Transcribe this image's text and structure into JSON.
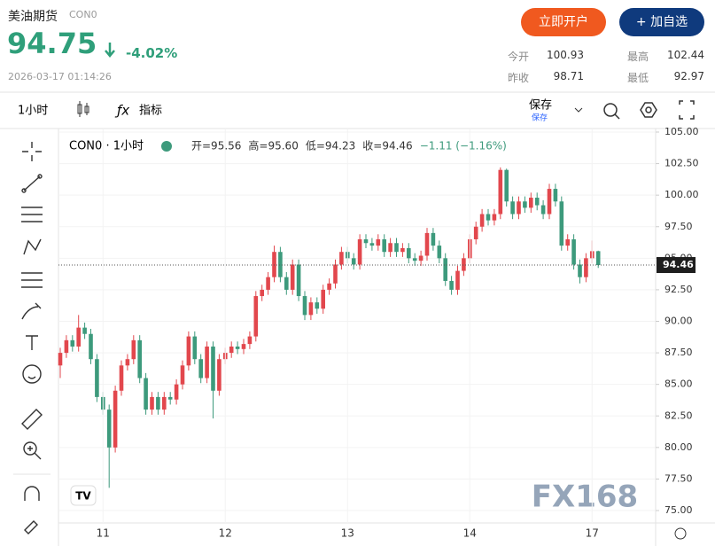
{
  "header": {
    "title": "美油期货",
    "code": "CON0",
    "price": "94.75",
    "change": "-4.02%",
    "time": "2026-03-17 01:14:26",
    "buttons": [
      "立即开户",
      "+ 加自选"
    ],
    "stats": [
      [
        "今开",
        "100.93"
      ],
      [
        "最高",
        "102.44"
      ],
      [
        "昨收",
        "98.71"
      ],
      [
        "最低",
        "92.97"
      ]
    ]
  },
  "toolbar": {
    "interval": "1小时",
    "indicators": "指标",
    "save": "保存",
    "save_sub": "保存"
  },
  "watermark": "FX168",
  "chart_data": {
    "type": "candlestick",
    "legend": {
      "symbol": "CON0 · 1小时",
      "items": [
        "开=95.56",
        "高=95.60",
        "低=94.23",
        "收=94.46",
        "−1.11 (−1.16%)"
      ]
    },
    "up_color": "#e2474d",
    "down_color": "#3d9a7c",
    "categories": [
      null,
      null,
      null,
      null,
      null,
      null,
      null,
      "11",
      null,
      null,
      null,
      null,
      null,
      null,
      null,
      null,
      null,
      null,
      null,
      null,
      null,
      null,
      null,
      null,
      null,
      null,
      null,
      "12",
      null,
      null,
      null,
      null,
      null,
      null,
      null,
      null,
      null,
      null,
      null,
      null,
      null,
      null,
      null,
      null,
      null,
      null,
      null,
      "13",
      null,
      null,
      null,
      null,
      null,
      null,
      null,
      null,
      null,
      null,
      null,
      null,
      null,
      null,
      null,
      null,
      null,
      null,
      null,
      "14",
      null,
      null,
      null,
      null,
      null,
      null,
      null,
      null,
      null,
      null,
      null,
      null,
      null,
      null,
      null,
      null,
      null,
      null,
      null,
      "17",
      null
    ],
    "open": [
      86.5,
      87.5,
      88.5,
      88.0,
      89.5,
      89.0,
      87.0,
      84.0,
      83.0,
      80.0,
      84.5,
      86.5,
      87.0,
      88.5,
      85.5,
      83.0,
      84.0,
      83.0,
      84.0,
      83.8,
      85.0,
      86.5,
      88.8,
      87.0,
      85.5,
      88.0,
      84.5,
      87.0,
      87.5,
      88.0,
      87.8,
      88.2,
      88.8,
      92.0,
      92.5,
      93.5,
      95.5,
      93.5,
      92.5,
      94.5,
      92.0,
      90.5,
      91.5,
      91.0,
      92.5,
      93.0,
      94.5,
      95.5,
      95.0,
      94.5,
      96.5,
      96.2,
      96.0,
      96.5,
      95.5,
      96.2,
      95.5,
      95.8,
      95.0,
      94.8,
      95.2,
      97.0,
      96.0,
      95.0,
      93.2,
      92.5,
      94.0,
      95.0,
      96.5,
      97.5,
      98.5,
      98.0,
      98.5,
      102.0,
      99.5,
      98.5,
      99.5,
      99.0,
      99.8,
      99.2,
      98.5,
      100.5,
      99.5,
      96.0,
      96.5,
      94.5,
      93.5,
      95.0,
      95.56
    ],
    "high": [
      87.9,
      88.9,
      88.9,
      90.5,
      89.9,
      89.4,
      87.4,
      84.4,
      83.4,
      84.9,
      86.9,
      87.4,
      88.9,
      88.9,
      85.9,
      84.4,
      84.4,
      84.4,
      84.4,
      85.4,
      86.9,
      89.2,
      89.2,
      87.4,
      88.4,
      88.4,
      87.4,
      87.9,
      88.4,
      88.4,
      88.6,
      89.2,
      92.4,
      92.9,
      93.9,
      96.0,
      95.9,
      93.9,
      94.9,
      94.9,
      92.4,
      91.9,
      91.9,
      92.9,
      93.4,
      94.9,
      95.9,
      95.9,
      95.4,
      96.9,
      96.9,
      96.6,
      96.9,
      96.9,
      96.6,
      96.6,
      96.2,
      96.2,
      95.4,
      95.6,
      97.4,
      97.4,
      96.4,
      95.4,
      93.6,
      94.4,
      95.4,
      96.9,
      97.9,
      98.9,
      98.9,
      98.9,
      102.2,
      102.1,
      99.9,
      99.9,
      99.9,
      100.2,
      100.2,
      99.6,
      100.9,
      100.9,
      99.9,
      96.9,
      96.9,
      94.9,
      95.4,
      96.4,
      95.6
    ],
    "low": [
      85.5,
      87.1,
      87.6,
      87.6,
      88.6,
      86.6,
      83.6,
      82.6,
      76.8,
      79.6,
      84.1,
      86.1,
      86.6,
      85.1,
      82.6,
      82.6,
      82.6,
      82.6,
      83.4,
      83.4,
      84.6,
      86.1,
      86.6,
      85.1,
      85.1,
      82.3,
      84.1,
      86.6,
      87.1,
      87.4,
      87.4,
      87.8,
      88.4,
      91.6,
      92.1,
      93.1,
      93.1,
      92.1,
      92.1,
      91.6,
      90.1,
      90.1,
      90.6,
      90.6,
      92.1,
      92.6,
      94.1,
      94.6,
      94.1,
      94.1,
      95.8,
      95.6,
      95.6,
      95.1,
      95.1,
      95.1,
      95.1,
      94.6,
      94.4,
      94.4,
      94.8,
      95.6,
      94.6,
      92.8,
      92.1,
      92.1,
      93.6,
      94.6,
      96.1,
      97.1,
      97.6,
      97.6,
      98.1,
      99.1,
      98.1,
      98.1,
      98.6,
      98.6,
      98.8,
      98.1,
      98.1,
      99.1,
      95.6,
      95.6,
      94.1,
      93.0,
      93.1,
      94.6,
      94.23
    ],
    "close": [
      87.5,
      88.5,
      88.0,
      89.5,
      89.0,
      87.0,
      84.0,
      83.0,
      80.0,
      84.5,
      86.5,
      87.0,
      88.5,
      85.5,
      83.0,
      84.0,
      83.0,
      84.0,
      83.8,
      85.0,
      86.5,
      88.8,
      87.0,
      85.5,
      88.0,
      84.5,
      87.0,
      87.5,
      88.0,
      87.8,
      88.2,
      88.8,
      92.0,
      92.5,
      93.5,
      95.5,
      93.5,
      92.5,
      94.5,
      92.0,
      90.5,
      91.5,
      91.0,
      92.5,
      93.0,
      94.5,
      95.5,
      95.0,
      94.5,
      96.5,
      96.2,
      96.0,
      96.5,
      95.5,
      96.2,
      95.5,
      95.8,
      95.0,
      94.8,
      95.2,
      97.0,
      96.0,
      95.0,
      93.2,
      92.5,
      94.0,
      95.0,
      96.5,
      97.5,
      98.5,
      98.0,
      98.5,
      102.0,
      99.5,
      98.5,
      99.5,
      99.0,
      99.8,
      99.2,
      98.5,
      100.5,
      99.5,
      96.0,
      96.5,
      94.5,
      93.5,
      95.0,
      95.56,
      94.46
    ],
    "ylim": [
      75,
      105
    ],
    "yticks": [
      {
        "value": 75,
        "label": "75.00"
      },
      {
        "value": 77.5,
        "label": "77.50"
      },
      {
        "value": 80,
        "label": "80.00"
      },
      {
        "value": 82.5,
        "label": "82.50"
      },
      {
        "value": 85,
        "label": "85.00"
      },
      {
        "value": 87.5,
        "label": "87.50"
      },
      {
        "value": 90,
        "label": "90.00"
      },
      {
        "value": 92.5,
        "label": "92.50"
      },
      {
        "value": 95,
        "label": "95.00"
      },
      {
        "value": 97.5,
        "label": "97.50"
      },
      {
        "value": 100,
        "label": "100.00"
      },
      {
        "value": 102.5,
        "label": "102.50"
      },
      {
        "value": 105,
        "label": "105.00"
      }
    ],
    "grid": true
  }
}
